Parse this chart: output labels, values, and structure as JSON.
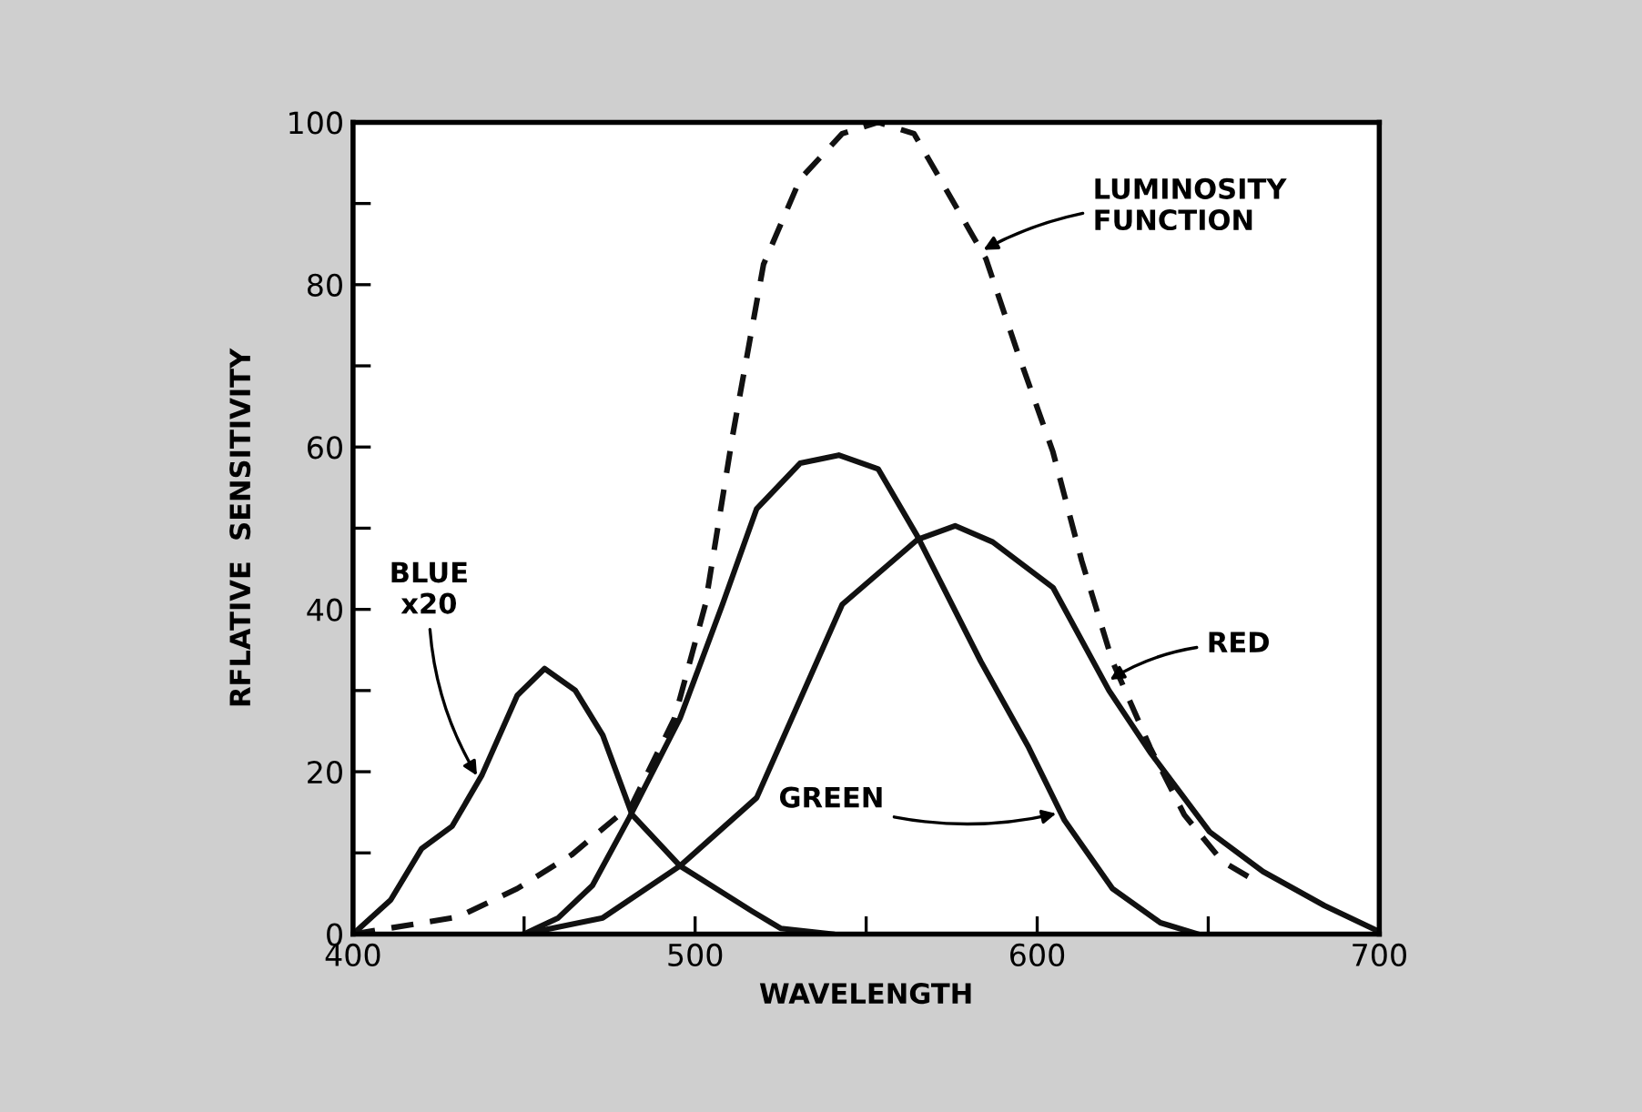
{
  "chart_data": {
    "type": "line",
    "xlabel": "WAVELENGTH",
    "ylabel": "RFLATIVE  SENSITIVITY",
    "xlim": [
      400,
      700
    ],
    "ylim": [
      0,
      100
    ],
    "xticks": [
      400,
      {
        "value": 450,
        "label": null
      },
      500,
      {
        "value": 550,
        "label": null
      },
      600,
      {
        "value": 650,
        "label": null
      },
      700
    ],
    "yticks": [
      0,
      {
        "value": 10,
        "label": null
      },
      20,
      {
        "value": 30,
        "label": null
      },
      40,
      {
        "value": 50,
        "label": null
      },
      60,
      {
        "value": 70,
        "label": null
      },
      80,
      {
        "value": 90,
        "label": null
      },
      100
    ],
    "series": [
      {
        "color": "#111111",
        "line_style": "solid",
        "x": [
          400,
          411,
          420,
          429,
          437.7,
          448,
          456,
          465,
          473,
          481.6,
          495.6,
          516.7,
          525,
          540
        ],
        "values": [
          0,
          4.2,
          10.5,
          13.3,
          19.6,
          29.4,
          32.7,
          30,
          24.5,
          14.7,
          8.4,
          2.8,
          0.7,
          0
        ]
      },
      {
        "color": "#111111",
        "line_style": "solid",
        "x": [
          450,
          460,
          470,
          480.7,
          495.6,
          508,
          518,
          530.7,
          542,
          553.5,
          565,
          583.5,
          597.5,
          608,
          622,
          636,
          647
        ],
        "values": [
          0,
          2,
          6,
          14.3,
          26.6,
          40.6,
          52.4,
          58,
          59,
          57.3,
          49,
          33.6,
          23,
          14,
          5.6,
          1.4,
          0
        ]
      },
      {
        "color": "#111111",
        "line_style": "solid",
        "x": [
          450,
          473,
          495.6,
          518,
          543,
          565,
          576,
          587,
          604.6,
          621,
          633,
          650.4,
          666,
          684,
          700
        ],
        "values": [
          0,
          2,
          8.4,
          16.8,
          40.6,
          48.6,
          50.3,
          48.3,
          42.7,
          30,
          22.4,
          12.6,
          7.7,
          3.5,
          0.3
        ]
      },
      {
        "color": "#111111",
        "line_style": "dashed",
        "x": [
          400,
          430.7,
          448,
          464,
          481.6,
          494,
          503,
          511,
          520,
          530.7,
          543,
          553.5,
          564,
          576.4,
          585,
          594,
          604.6,
          613,
          622,
          633,
          643,
          654,
          662
        ],
        "values": [
          0,
          2.1,
          5.6,
          9.8,
          16,
          26.6,
          40.6,
          61.5,
          82.5,
          93,
          98.6,
          100,
          98.6,
          89.5,
          83.2,
          72,
          59.4,
          46,
          33.6,
          23,
          14.7,
          9,
          7
        ]
      }
    ],
    "annotations": [
      {
        "text": "LUMINOSITY\nFUNCTION",
        "x": 583,
        "y": 84
      },
      {
        "text": "RED",
        "x": 620,
        "y": 31
      },
      {
        "text": "GREEN",
        "x": 607,
        "y": 15
      },
      {
        "text": "BLUE\nx20",
        "x": 437,
        "y": 19
      }
    ]
  }
}
